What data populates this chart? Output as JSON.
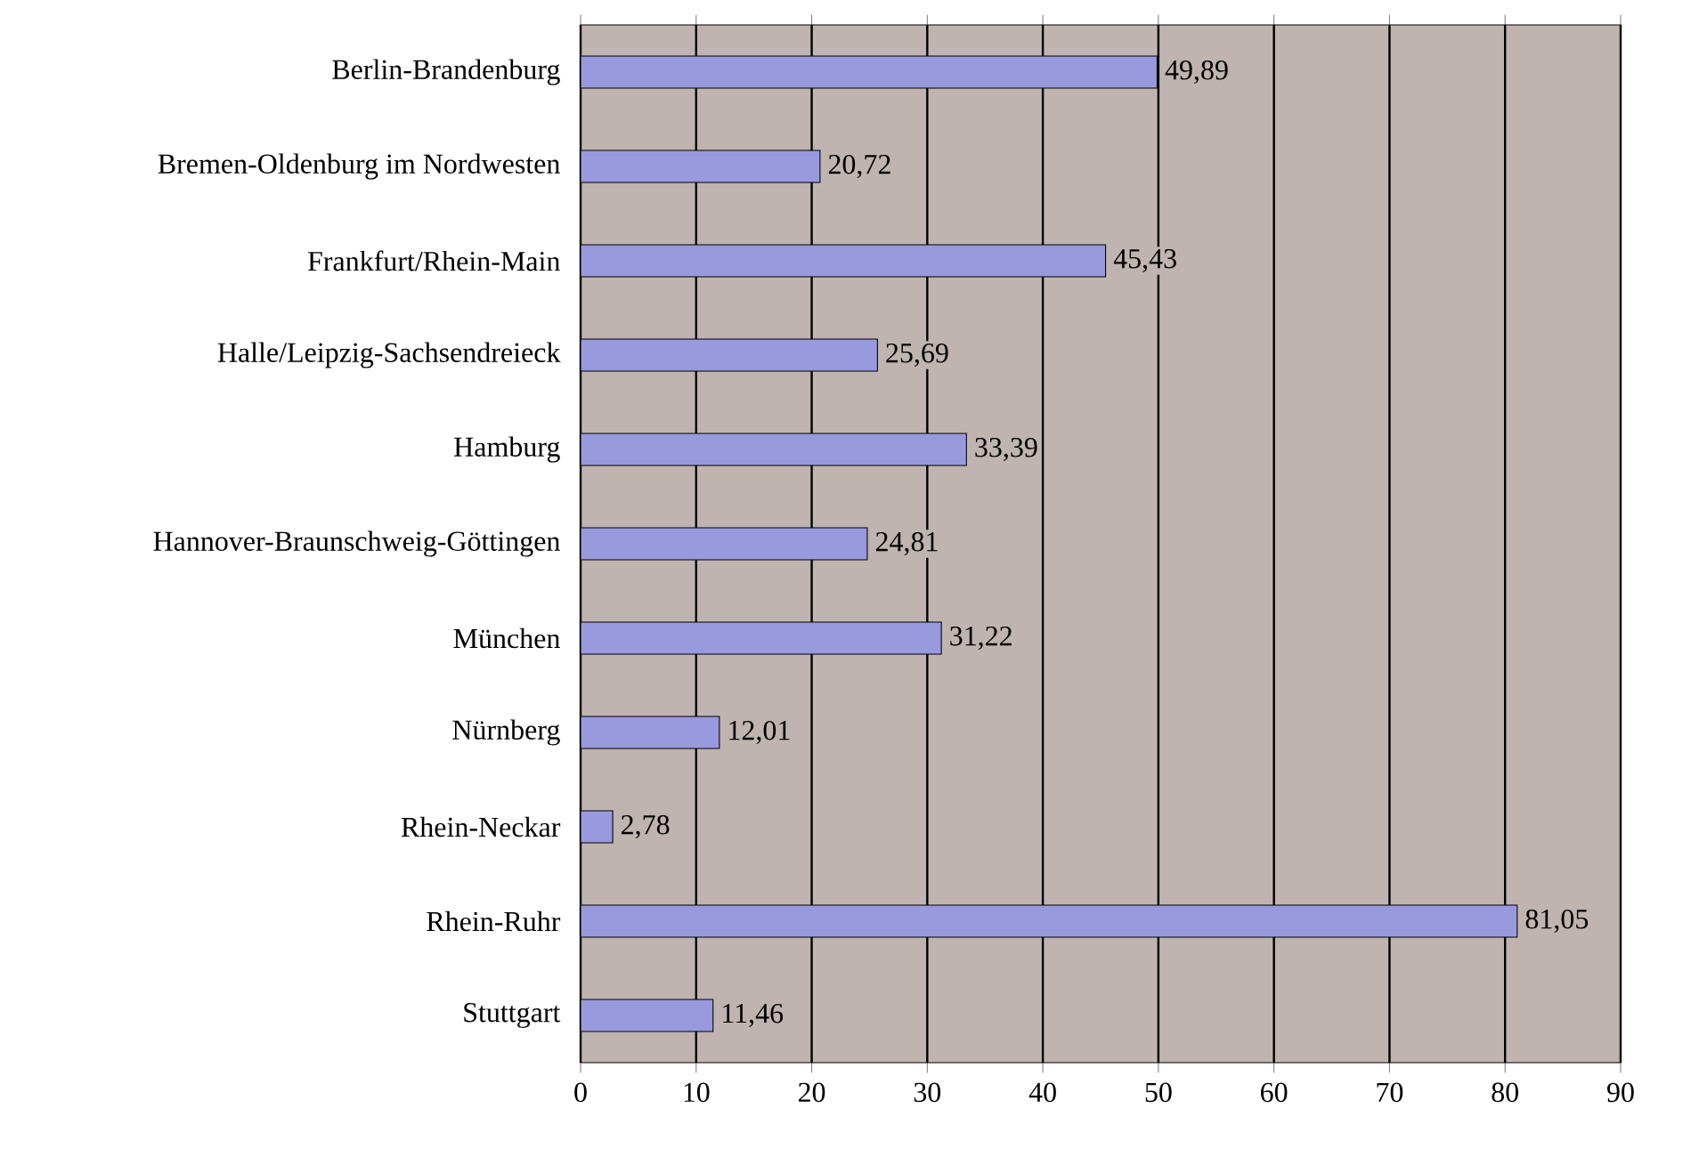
{
  "chart_data": {
    "type": "bar",
    "orientation": "horizontal",
    "categories": [
      "Berlin-Brandenburg",
      "Bremen-Oldenburg im Nordwesten",
      "Frankfurt/Rhein-Main",
      "Halle/Leipzig-Sachsendreieck",
      "Hamburg",
      "Hannover-Braunschweig-Göttingen",
      "München",
      "Nürnberg",
      "Rhein-Neckar",
      "Rhein-Ruhr",
      "Stuttgart"
    ],
    "values": [
      49.89,
      20.72,
      45.43,
      25.69,
      33.39,
      24.81,
      31.22,
      12.01,
      2.78,
      81.05,
      11.46
    ],
    "value_labels": [
      "49,89",
      "20,72",
      "45,43",
      "25,69",
      "33,39",
      "24,81",
      "31,22",
      "12,01",
      "2,78",
      "81,05",
      "11,46"
    ],
    "color": "#9999dd",
    "xlim": [
      0,
      90
    ],
    "xticks": [
      0,
      10,
      20,
      30,
      40,
      50,
      60,
      70,
      80,
      90
    ],
    "grid": "x"
  }
}
